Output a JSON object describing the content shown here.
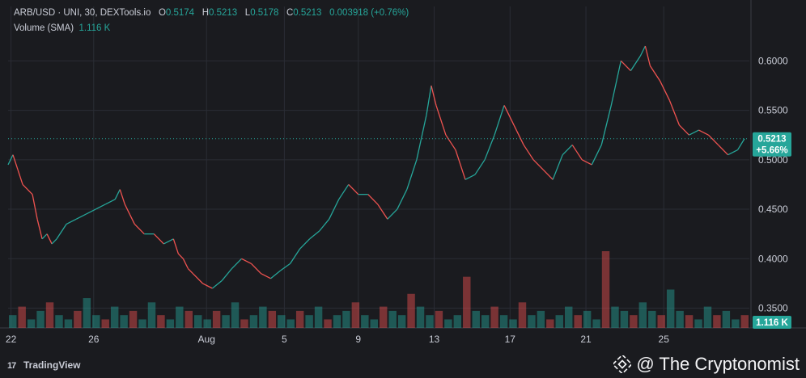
{
  "legend": {
    "title": "ARB/USD · UNI, 30, DEXTools.io",
    "o_label": "O",
    "o_value": "0.5174",
    "h_label": "H",
    "h_value": "0.5213",
    "l_label": "L",
    "l_value": "0.5178",
    "c_label": "C",
    "c_value": "0.5213",
    "change": "0.003918 (+0.76%)",
    "volume_label": "Volume (SMA)",
    "volume_value": "1.116 K"
  },
  "price_tag": {
    "price": "0.5213",
    "change": "+5.66%"
  },
  "volume_tag": "1.116 K",
  "footer": {
    "tradingview": "TradingView",
    "watermark": "@ The Cryptonomist"
  },
  "colors": {
    "up": "#26a69a",
    "down": "#ef5350",
    "background": "#1a1b1f",
    "grid": "#2a2d35",
    "tag": "#26a69a"
  },
  "chart_data": {
    "type": "line",
    "series": [
      {
        "values": [
          [
            0.0,
            0.495
          ],
          [
            0.5,
            0.505
          ],
          [
            1.0,
            0.49
          ],
          [
            1.5,
            0.475
          ],
          [
            2.0,
            0.47
          ],
          [
            2.5,
            0.465
          ],
          [
            3.0,
            0.44
          ],
          [
            3.5,
            0.42
          ],
          [
            4.0,
            0.425
          ],
          [
            4.5,
            0.415
          ],
          [
            5.0,
            0.42
          ],
          [
            6.0,
            0.435
          ],
          [
            7.0,
            0.44
          ],
          [
            8.0,
            0.445
          ],
          [
            9.0,
            0.45
          ],
          [
            10.0,
            0.455
          ],
          [
            11.0,
            0.46
          ],
          [
            11.5,
            0.47
          ],
          [
            12.0,
            0.455
          ],
          [
            12.5,
            0.445
          ],
          [
            13.0,
            0.435
          ],
          [
            14.0,
            0.425
          ],
          [
            15.0,
            0.425
          ],
          [
            16.0,
            0.415
          ],
          [
            17.0,
            0.42
          ],
          [
            17.5,
            0.405
          ],
          [
            18.0,
            0.4
          ],
          [
            18.5,
            0.39
          ],
          [
            19.0,
            0.385
          ],
          [
            20.0,
            0.375
          ],
          [
            21.0,
            0.37
          ],
          [
            22.0,
            0.378
          ],
          [
            23.0,
            0.39
          ],
          [
            24.0,
            0.4
          ],
          [
            25.0,
            0.395
          ],
          [
            26.0,
            0.385
          ],
          [
            27.0,
            0.38
          ],
          [
            28.0,
            0.388
          ],
          [
            29.0,
            0.395
          ],
          [
            30.0,
            0.41
          ],
          [
            31.0,
            0.42
          ],
          [
            32.0,
            0.428
          ],
          [
            33.0,
            0.44
          ],
          [
            34.0,
            0.46
          ],
          [
            35.0,
            0.475
          ],
          [
            36.0,
            0.465
          ],
          [
            37.0,
            0.465
          ],
          [
            38.0,
            0.455
          ],
          [
            39.0,
            0.44
          ],
          [
            40.0,
            0.45
          ],
          [
            41.0,
            0.47
          ],
          [
            42.0,
            0.5
          ],
          [
            43.0,
            0.545
          ],
          [
            43.5,
            0.575
          ],
          [
            44.0,
            0.555
          ],
          [
            45.0,
            0.525
          ],
          [
            46.0,
            0.51
          ],
          [
            47.0,
            0.48
          ],
          [
            48.0,
            0.485
          ],
          [
            49.0,
            0.5
          ],
          [
            50.0,
            0.525
          ],
          [
            51.0,
            0.555
          ],
          [
            52.0,
            0.535
          ],
          [
            53.0,
            0.515
          ],
          [
            54.0,
            0.5
          ],
          [
            55.0,
            0.49
          ],
          [
            56.0,
            0.48
          ],
          [
            57.0,
            0.505
          ],
          [
            58.0,
            0.515
          ],
          [
            59.0,
            0.5
          ],
          [
            60.0,
            0.495
          ],
          [
            61.0,
            0.515
          ],
          [
            62.0,
            0.555
          ],
          [
            63.0,
            0.6
          ],
          [
            64.0,
            0.59
          ],
          [
            65.0,
            0.605
          ],
          [
            65.5,
            0.615
          ],
          [
            66.0,
            0.595
          ],
          [
            67.0,
            0.58
          ],
          [
            68.0,
            0.56
          ],
          [
            69.0,
            0.535
          ],
          [
            70.0,
            0.525
          ],
          [
            71.0,
            0.53
          ],
          [
            72.0,
            0.525
          ],
          [
            73.0,
            0.515
          ],
          [
            74.0,
            0.505
          ],
          [
            75.0,
            0.51
          ],
          [
            75.7,
            0.5213
          ]
        ]
      }
    ],
    "volume": [
      3,
      5,
      2,
      4,
      6,
      3,
      2,
      4,
      7,
      3,
      2,
      5,
      3,
      4,
      2,
      6,
      3,
      2,
      5,
      4,
      3,
      2,
      4,
      3,
      6,
      2,
      3,
      5,
      4,
      3,
      2,
      4,
      3,
      5,
      2,
      3,
      4,
      6,
      3,
      2,
      5,
      4,
      3,
      8,
      5,
      3,
      4,
      2,
      3,
      12,
      4,
      3,
      5,
      3,
      2,
      6,
      3,
      4,
      2,
      3,
      5,
      3,
      4,
      2,
      18,
      5,
      4,
      3,
      6,
      4,
      3,
      9,
      4,
      3,
      2,
      5,
      3,
      4,
      2,
      3
    ],
    "x_ticks": [
      {
        "x": 0.3,
        "label": "22"
      },
      {
        "x": 8.8,
        "label": "26"
      },
      {
        "x": 20.4,
        "label": "Aug"
      },
      {
        "x": 28.4,
        "label": "5"
      },
      {
        "x": 36.0,
        "label": "9"
      },
      {
        "x": 43.8,
        "label": "13"
      },
      {
        "x": 51.6,
        "label": "17"
      },
      {
        "x": 59.4,
        "label": "21"
      },
      {
        "x": 67.4,
        "label": "25"
      }
    ],
    "y_ticks": [
      "0.6000",
      "0.5500",
      "0.5000",
      "0.4500",
      "0.4000",
      "0.3500"
    ],
    "ylim": [
      0.33,
      0.655
    ],
    "xlim": [
      0,
      76.2
    ],
    "last_price": 0.5213
  }
}
